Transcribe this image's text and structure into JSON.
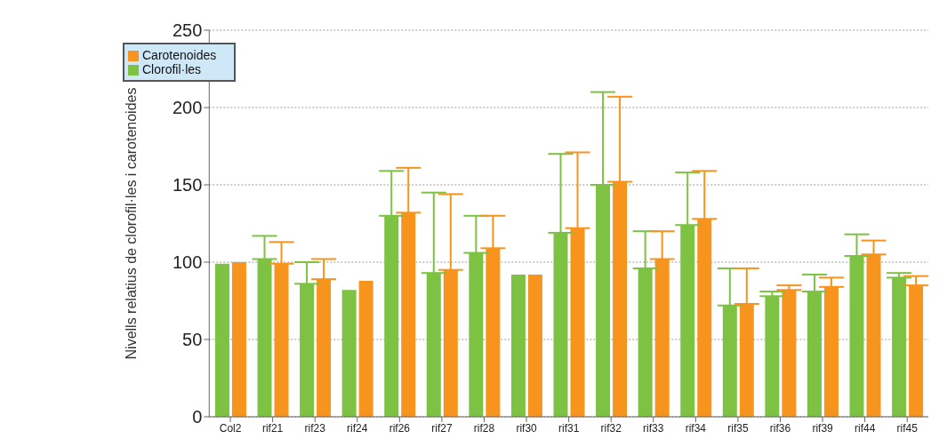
{
  "chart_data": {
    "type": "bar",
    "ylabel": "Nivells relatius de clorofil·les i carotenoides",
    "categories": [
      "Col2",
      "rif21",
      "rif23",
      "rif24",
      "rif26",
      "rif27",
      "rif28",
      "rif30",
      "rif31",
      "rif32",
      "rif33",
      "rif34",
      "rif35",
      "rif36",
      "rif39",
      "rif44",
      "rif45"
    ],
    "series": [
      {
        "name": "Clorofil·les",
        "color": "#7dc242",
        "values": [
          99,
          102,
          86,
          82,
          130,
          93,
          106,
          92,
          119,
          150,
          96,
          124,
          72,
          78,
          81,
          104,
          90
        ],
        "errors": [
          null,
          [
            102,
            117
          ],
          [
            86,
            100
          ],
          null,
          [
            130,
            159
          ],
          [
            93,
            145
          ],
          [
            106,
            130
          ],
          null,
          [
            119,
            170
          ],
          [
            150,
            210
          ],
          [
            96,
            120
          ],
          [
            124,
            158
          ],
          [
            72,
            96
          ],
          [
            78,
            81
          ],
          [
            81,
            92
          ],
          [
            104,
            118
          ],
          [
            90,
            93
          ]
        ]
      },
      {
        "name": "Carotenoides",
        "color": "#f7941d",
        "values": [
          100,
          99,
          89,
          88,
          132,
          95,
          109,
          92,
          122,
          152,
          102,
          128,
          73,
          82,
          84,
          105,
          85
        ],
        "errors": [
          null,
          [
            99,
            113
          ],
          [
            89,
            102
          ],
          null,
          [
            132,
            161
          ],
          [
            95,
            144
          ],
          [
            109,
            130
          ],
          null,
          [
            122,
            171
          ],
          [
            152,
            207
          ],
          [
            102,
            120
          ],
          [
            128,
            159
          ],
          [
            73,
            96
          ],
          [
            82,
            85
          ],
          [
            84,
            90
          ],
          [
            105,
            114
          ],
          [
            85,
            91
          ]
        ]
      }
    ],
    "ylim": [
      0,
      250
    ],
    "yticks": [
      0,
      50,
      100,
      150,
      200,
      250
    ],
    "grid": "y",
    "legend": "top left"
  }
}
